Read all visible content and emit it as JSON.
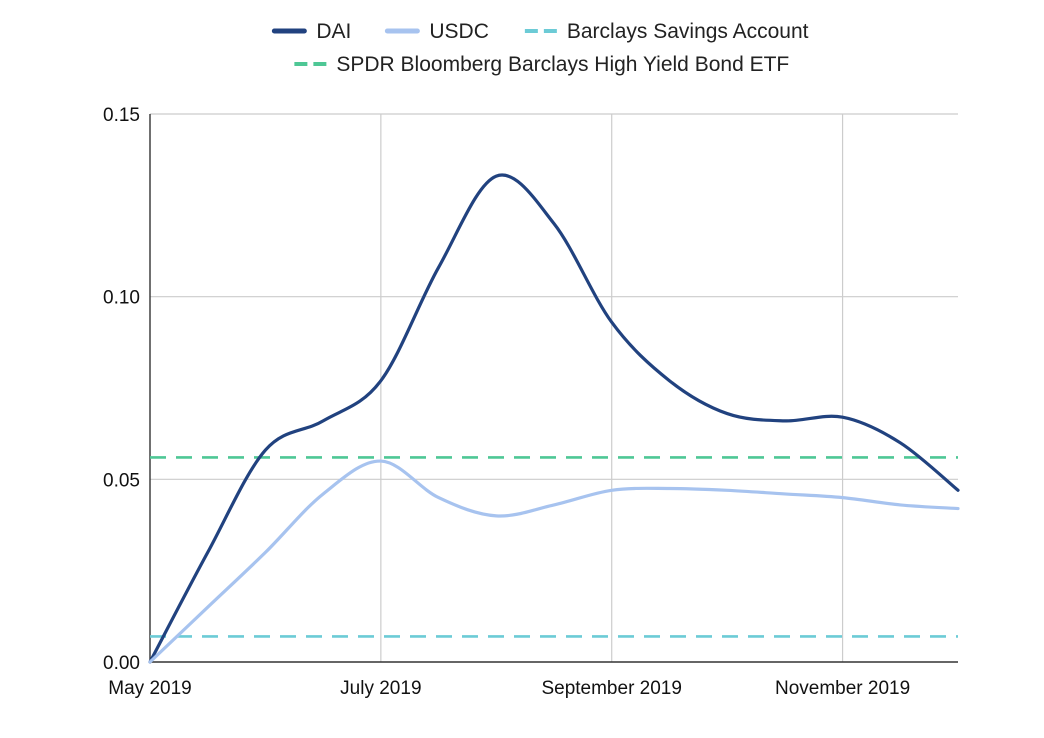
{
  "chart_data": {
    "type": "line",
    "title": "",
    "xlabel": "",
    "ylabel": "",
    "x_ticks": [
      "May 2019",
      "July 2019",
      "September 2019",
      "November 2019"
    ],
    "x_tick_positions": [
      0,
      2,
      4,
      6
    ],
    "xlim": [
      0,
      7
    ],
    "y_ticks": [
      "0.00",
      "0.05",
      "0.10",
      "0.15"
    ],
    "y_tick_values": [
      0,
      0.05,
      0.1,
      0.15
    ],
    "ylim": [
      0,
      0.15
    ],
    "grid": true,
    "legend_position": "top",
    "series": [
      {
        "name": "DAI",
        "color": "#21427f",
        "style": "solid",
        "x": [
          0,
          0.5,
          1,
          1.5,
          2,
          2.5,
          3,
          3.5,
          4,
          4.5,
          5,
          5.5,
          6,
          6.5,
          7
        ],
        "y": [
          0.0,
          0.03,
          0.058,
          0.066,
          0.077,
          0.108,
          0.133,
          0.12,
          0.093,
          0.077,
          0.068,
          0.066,
          0.067,
          0.06,
          0.047
        ]
      },
      {
        "name": "USDC",
        "color": "#a7c3ef",
        "style": "solid",
        "x": [
          0,
          0.5,
          1,
          1.5,
          2,
          2.5,
          3,
          3.5,
          4,
          4.5,
          5,
          5.5,
          6,
          6.5,
          7
        ],
        "y": [
          0.0,
          0.015,
          0.03,
          0.046,
          0.055,
          0.045,
          0.04,
          0.043,
          0.047,
          0.0475,
          0.047,
          0.046,
          0.045,
          0.043,
          0.042
        ]
      },
      {
        "name": "Barclays Savings Account",
        "color": "#6ccbd6",
        "style": "dashed",
        "x": [
          0,
          7
        ],
        "y": [
          0.007,
          0.007
        ]
      },
      {
        "name": "SPDR Bloomberg Barclays High Yield Bond ETF",
        "color": "#4ec795",
        "style": "dashed",
        "x": [
          0,
          7
        ],
        "y": [
          0.056,
          0.056
        ]
      }
    ]
  }
}
